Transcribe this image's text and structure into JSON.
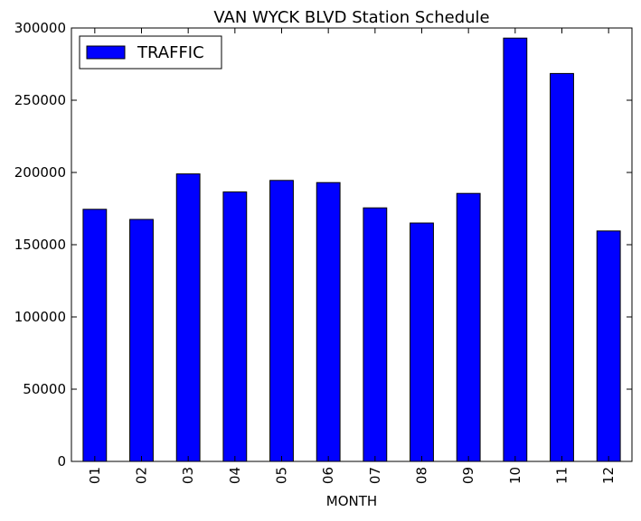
{
  "chart_data": {
    "type": "bar",
    "title": "VAN WYCK BLVD Station Schedule",
    "xlabel": "MONTH",
    "ylabel": "",
    "categories": [
      "01",
      "02",
      "03",
      "04",
      "05",
      "06",
      "07",
      "08",
      "09",
      "10",
      "11",
      "12"
    ],
    "series": [
      {
        "name": "TRAFFIC",
        "color": "#0000ff",
        "values": [
          174500,
          167500,
          199000,
          186500,
          194500,
          193000,
          175500,
          165000,
          185500,
          293000,
          268500,
          159500
        ]
      }
    ],
    "ylim": [
      0,
      300000
    ],
    "yticks": [
      "0",
      "50000",
      "100000",
      "150000",
      "200000",
      "250000",
      "300000"
    ],
    "grid": false,
    "legend_position": "top-left"
  }
}
